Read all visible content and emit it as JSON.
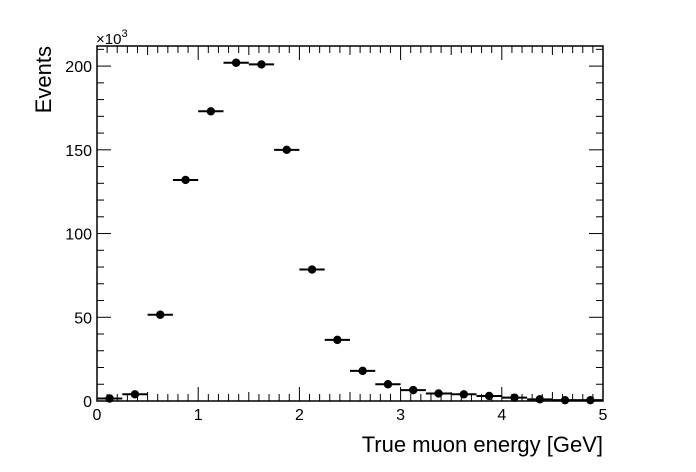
{
  "chart_data": {
    "type": "scatter",
    "title": "",
    "xlabel": "True muon energy [GeV]",
    "ylabel": "Events",
    "y_multiplier": "×10",
    "y_multiplier_exp": "3",
    "xlim": [
      0,
      5
    ],
    "ylim": [
      0,
      212
    ],
    "grid": false,
    "legend": "none",
    "x_ticks": [
      0,
      1,
      2,
      3,
      4,
      5
    ],
    "y_ticks": [
      0,
      50,
      100,
      150,
      200
    ],
    "bin_width": 0.25,
    "series": [
      {
        "x": [
          0.125,
          0.375,
          0.625,
          0.875,
          1.125,
          1.375,
          1.625,
          1.875,
          2.125,
          2.375,
          2.625,
          2.875,
          3.125,
          3.375,
          3.625,
          3.875,
          4.125,
          4.375,
          4.625,
          4.875
        ],
        "y": [
          1.5,
          4,
          51.5,
          132,
          173,
          202,
          201,
          150,
          78.5,
          36.5,
          18,
          10,
          6.5,
          4.5,
          4,
          3,
          2,
          1,
          0.5,
          0.5
        ]
      }
    ],
    "marker_color": "#000000"
  }
}
